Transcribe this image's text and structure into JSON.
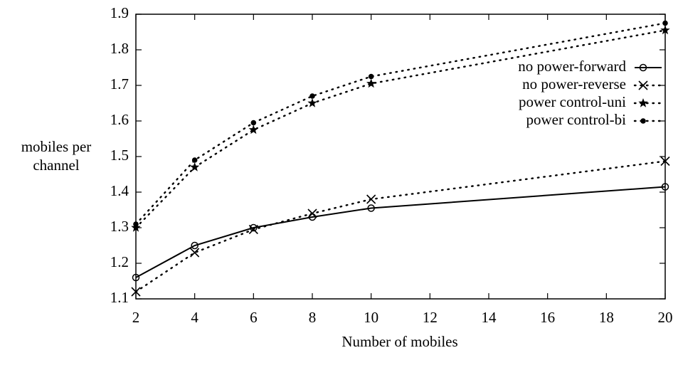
{
  "chart_data": {
    "type": "line",
    "x_label": "Number of mobiles",
    "y_label": "mobiles per channel",
    "x": [
      2,
      4,
      6,
      8,
      10,
      20
    ],
    "series": [
      {
        "name": "no power-forward",
        "color": "#000000",
        "linestyle": "solid",
        "marker": "circle",
        "values": [
          1.16,
          1.25,
          1.3,
          1.33,
          1.355,
          1.415
        ]
      },
      {
        "name": "no power-reverse",
        "color": "#000000",
        "linestyle": "dotted",
        "marker": "x",
        "values": [
          1.12,
          1.23,
          1.295,
          1.34,
          1.38,
          1.487
        ]
      },
      {
        "name": "power control-uni",
        "color": "#000000",
        "linestyle": "dotted",
        "marker": "star",
        "values": [
          1.3,
          1.47,
          1.575,
          1.65,
          1.705,
          1.855
        ]
      },
      {
        "name": "power control-bi",
        "color": "#000000",
        "linestyle": "dotted",
        "marker": "dot",
        "values": [
          1.31,
          1.49,
          1.595,
          1.67,
          1.725,
          1.875
        ]
      }
    ],
    "xlim": [
      2,
      20
    ],
    "xticks": [
      2,
      4,
      6,
      8,
      10,
      12,
      14,
      16,
      18,
      20
    ],
    "ylim": [
      1.1,
      1.9
    ],
    "yticks": [
      1.1,
      1.2,
      1.3,
      1.4,
      1.5,
      1.6,
      1.7,
      1.8,
      1.9
    ],
    "grid": false,
    "legend": "upper right"
  }
}
